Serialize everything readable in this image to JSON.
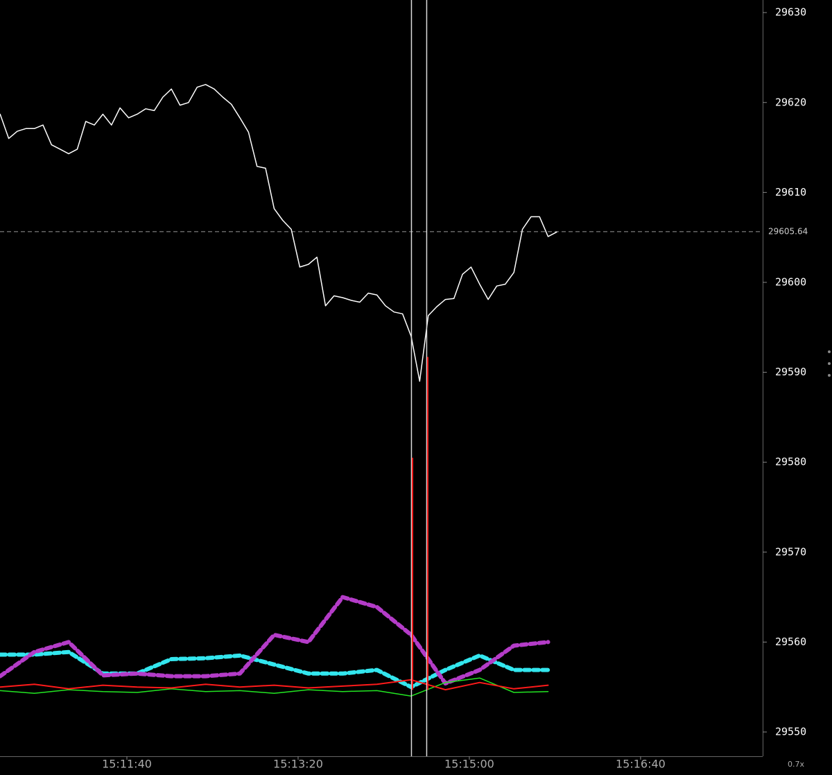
{
  "chart_data": {
    "type": "line",
    "xlim": [
      54625.9,
      55071.3
    ],
    "ylim": [
      29547.3,
      29631.4
    ],
    "xticks": [
      {
        "value": 54700,
        "label": "15:11:40"
      },
      {
        "value": 54800,
        "label": "15:13:20"
      },
      {
        "value": 54900,
        "label": "15:15:00"
      },
      {
        "value": 55000,
        "label": "15:16:40"
      }
    ],
    "yticks": [
      29550,
      29560,
      29570,
      29580,
      29590,
      29600,
      29610,
      29620,
      29630
    ],
    "last_price": 29605.64,
    "zoom_label": "0.7x",
    "series": [
      {
        "color": "#ffffff",
        "x": [
          54626,
          54631,
          54636,
          54641,
          54646,
          54651,
          54656,
          54661,
          54666,
          54671,
          54676,
          54681,
          54686,
          54691,
          54696,
          54701,
          54706,
          54711,
          54716,
          54721,
          54726,
          54731,
          54736,
          54741,
          54746,
          54751,
          54756,
          54761,
          54766,
          54771,
          54776,
          54781,
          54786,
          54791,
          54796,
          54801,
          54806,
          54811,
          54816,
          54821,
          54826,
          54831,
          54836,
          54841,
          54846,
          54851,
          54856,
          54861,
          54866,
          54871,
          54876,
          54881,
          54886,
          54891,
          54896,
          54901,
          54906,
          54911,
          54916,
          54921,
          54926,
          54931,
          54936,
          54941,
          54946,
          54951
        ],
        "values": [
          29618.7,
          29616.0,
          29616.8,
          29617.1,
          29617.1,
          29617.5,
          29615.3,
          29614.8,
          29614.3,
          29614.8,
          29617.9,
          29617.5,
          29618.7,
          29617.5,
          29619.4,
          29618.3,
          29618.7,
          29619.3,
          29619.1,
          29620.6,
          29621.5,
          29619.7,
          29620.0,
          29621.7,
          29622.0,
          29621.5,
          29620.6,
          29619.8,
          29618.3,
          29616.7,
          29612.9,
          29612.7,
          29608.2,
          29606.9,
          29605.9,
          29601.7,
          29602.0,
          29602.8,
          29597.4,
          29598.5,
          29598.3,
          29598.0,
          29597.8,
          29598.8,
          29598.6,
          29597.4,
          29596.7,
          29596.5,
          29594.0,
          29589.0,
          29596.3,
          29597.3,
          29598.1,
          29598.2,
          29600.9,
          29601.7,
          29599.8,
          29598.1,
          29599.6,
          29599.8,
          29601.1,
          29605.9,
          29607.3,
          29607.3,
          29605.1,
          29605.6
        ]
      },
      {
        "color": "#33e6ee",
        "x": [
          54626,
          54646,
          54666,
          54686,
          54706,
          54726,
          54746,
          54766,
          54786,
          54806,
          54826,
          54846,
          54866,
          54886,
          54906,
          54926,
          54946
        ],
        "values": [
          29558.6,
          29558.6,
          29558.9,
          29556.5,
          29556.5,
          29558.1,
          29558.2,
          29558.5,
          29557.5,
          29556.5,
          29556.5,
          29556.9,
          29555.0,
          29556.9,
          29558.5,
          29556.9,
          29556.9
        ]
      },
      {
        "color": "#b43cc8",
        "x": [
          54626,
          54646,
          54666,
          54686,
          54706,
          54726,
          54746,
          54766,
          54786,
          54806,
          54826,
          54846,
          54866,
          54886,
          54906,
          54926,
          54946
        ],
        "values": [
          29556.2,
          29558.9,
          29560.0,
          29556.3,
          29556.5,
          29556.2,
          29556.2,
          29556.5,
          29560.8,
          29560.0,
          29565.0,
          29563.9,
          29560.8,
          29555.4,
          29556.9,
          29559.6,
          29560.0
        ]
      },
      {
        "color": "#ff1a1a",
        "x": [
          54626,
          54646,
          54666,
          54686,
          54706,
          54726,
          54746,
          54766,
          54786,
          54806,
          54826,
          54846,
          54866,
          54886,
          54906,
          54926,
          54946
        ],
        "values": [
          29555.0,
          29555.3,
          29554.8,
          29555.2,
          29555.0,
          29554.9,
          29555.3,
          29555.0,
          29555.2,
          29554.9,
          29555.1,
          29555.3,
          29555.8,
          29554.7,
          29555.5,
          29554.8,
          29555.2
        ]
      },
      {
        "color": "#22e622",
        "x": [
          54626,
          54646,
          54666,
          54686,
          54706,
          54726,
          54746,
          54766,
          54786,
          54806,
          54826,
          54846,
          54866,
          54886,
          54906,
          54926,
          54946
        ],
        "values": [
          29554.6,
          29554.3,
          29554.7,
          29554.5,
          29554.4,
          29554.8,
          29554.5,
          29554.6,
          29554.3,
          29554.7,
          29554.5,
          29554.6,
          29554.0,
          29555.5,
          29556.0,
          29554.4,
          29554.5
        ]
      }
    ],
    "spikes": {
      "color": "#ff1a1a",
      "x": [
        54866.8,
        54875.7
      ],
      "values": [
        29580.5,
        29591.7
      ]
    }
  }
}
